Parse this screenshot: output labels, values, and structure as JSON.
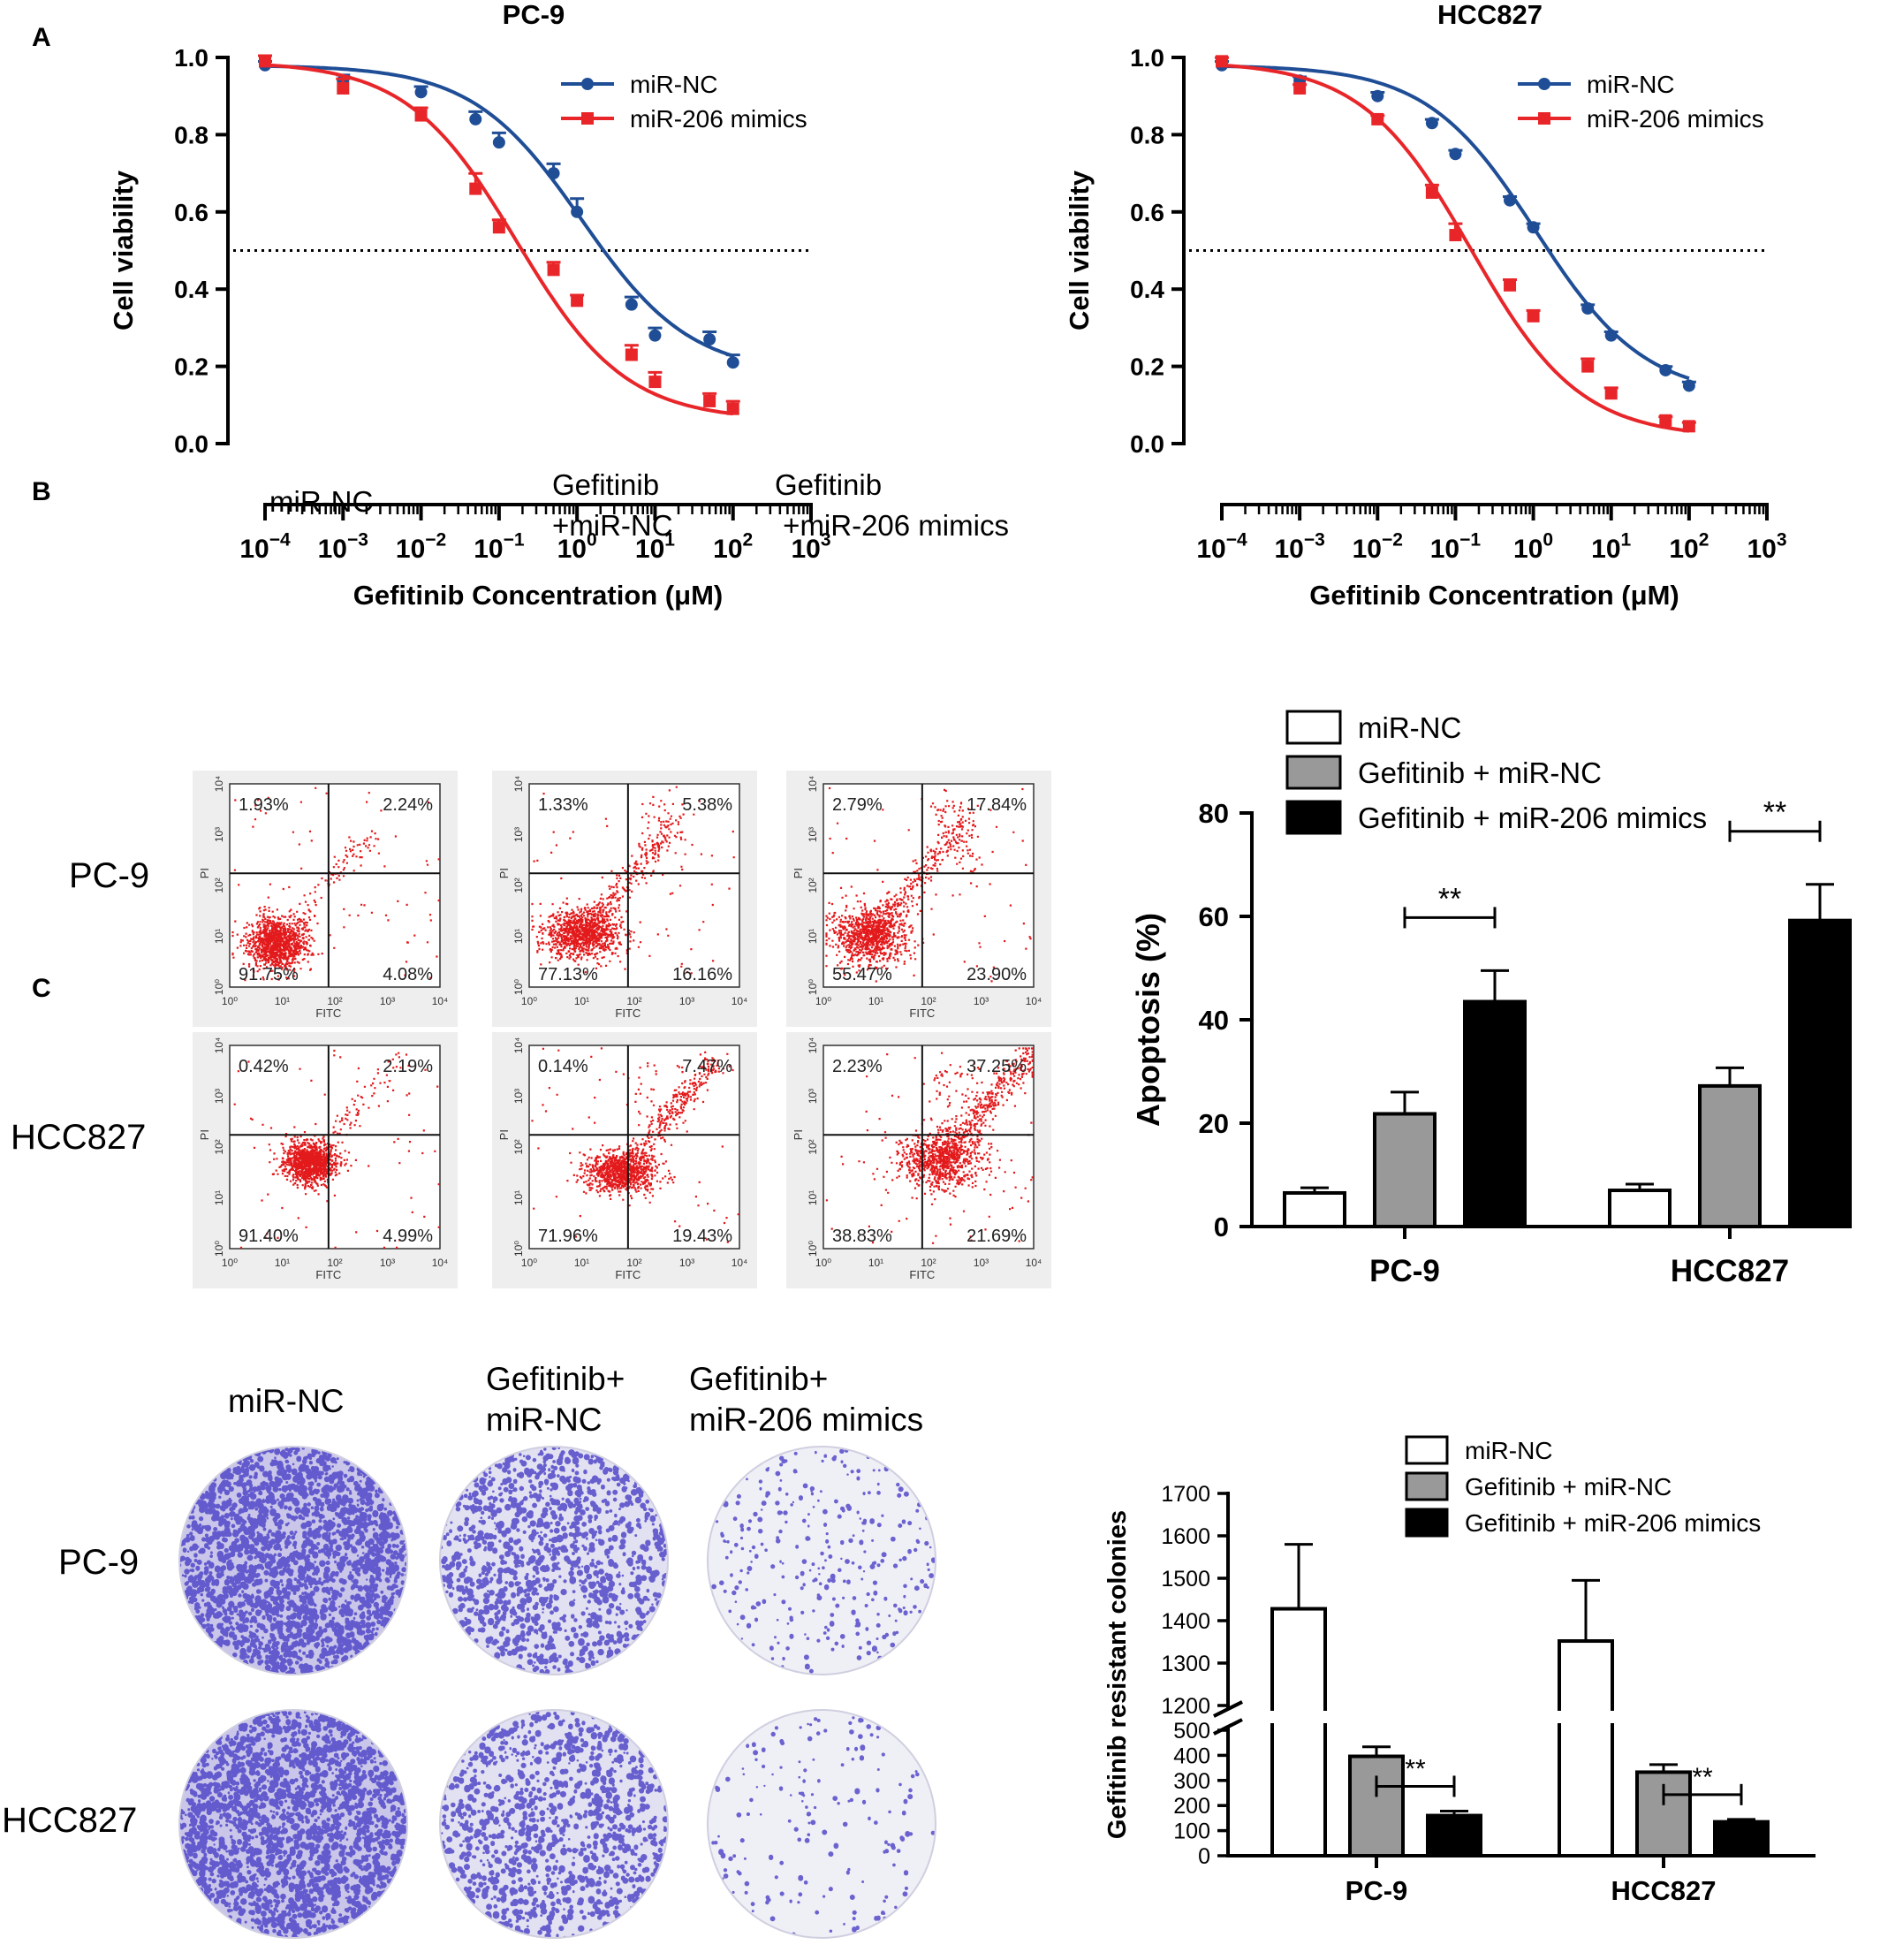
{
  "figure": {
    "panel_letters": [
      "A",
      "B",
      "C"
    ]
  },
  "panel_b": {
    "column_headers": [
      "miR-NC",
      "Gefitinib\n+miR-NC",
      "Gefitinib\n +miR-206 mimics"
    ],
    "row_labels": [
      "PC-9",
      "HCC827"
    ],
    "scatter_axis_labels": {
      "x": "FITC",
      "y": "PI"
    },
    "scatter_tick_labels": [
      "10⁰",
      "10¹",
      "10²",
      "10³",
      "10⁴"
    ],
    "quadrants": [
      [
        {
          "ul": "1.93%",
          "ur": "2.24%",
          "ll": "91.75%",
          "lr": "4.08%"
        },
        {
          "ul": "1.33%",
          "ur": "5.38%",
          "ll": "77.13%",
          "lr": "16.16%"
        },
        {
          "ul": "2.79%",
          "ur": "17.84%",
          "ll": "55.47%",
          "lr": "23.90%"
        }
      ],
      [
        {
          "ul": "0.42%",
          "ur": "2.19%",
          "ll": "91.40%",
          "lr": "4.99%"
        },
        {
          "ul": "0.14%",
          "ur": "7.47%",
          "ll": "71.96%",
          "lr": "19.43%"
        },
        {
          "ul": "2.23%",
          "ur": "37.25%",
          "ll": "38.83%",
          "lr": "21.69%"
        }
      ]
    ]
  },
  "panel_c": {
    "column_headers": [
      "miR-NC",
      "Gefitinib+\nmiR-NC",
      "Gefitinib+\nmiR-206 mimics"
    ],
    "row_labels": [
      "PC-9",
      "HCC827"
    ],
    "colony_density": [
      [
        1.0,
        0.55,
        0.12
      ],
      [
        1.0,
        0.5,
        0.06
      ]
    ]
  },
  "colors": {
    "blue": "#1f4e96",
    "red": "#e8262a",
    "grey_bar": "#999999",
    "black_bar": "#000000",
    "facs_red": "#e31a1c",
    "colony_purple": "#4a3fc7"
  },
  "chart_data": [
    {
      "type": "line",
      "title": "PC-9",
      "xlabel": "Gefitinib Concentration (μM)",
      "ylabel": "Cell  viability",
      "xscale": "log",
      "xlim": [
        0.0001,
        1000
      ],
      "ylim": [
        0,
        1.0
      ],
      "x_tick_labels": [
        "10−4",
        "10−3",
        "10−2",
        "10−1",
        "100",
        "101",
        "102",
        "103"
      ],
      "y_tick_labels": [
        "0.0",
        "0.2",
        "0.4",
        "0.6",
        "0.8",
        "1.0"
      ],
      "reference_line": 0.5,
      "legend": "top-right",
      "series": [
        {
          "name": "miR-NC",
          "color": "#1f4e96",
          "x": [
            0.0001,
            0.001,
            0.01,
            0.05,
            0.1,
            0.5,
            1,
            5,
            10,
            50,
            100
          ],
          "y": [
            0.98,
            0.94,
            0.91,
            0.84,
            0.78,
            0.7,
            0.6,
            0.36,
            0.28,
            0.27,
            0.21
          ],
          "err": [
            0.005,
            0.01,
            0.01,
            0.015,
            0.02,
            0.02,
            0.03,
            0.015,
            0.015,
            0.015,
            0.015
          ]
        },
        {
          "name": "miR-206 mimics",
          "color": "#e8262a",
          "x": [
            0.0001,
            0.001,
            0.01,
            0.05,
            0.1,
            0.5,
            1,
            5,
            10,
            50,
            100
          ],
          "y": [
            0.99,
            0.92,
            0.85,
            0.66,
            0.56,
            0.45,
            0.37,
            0.23,
            0.16,
            0.11,
            0.09
          ],
          "err": [
            0.01,
            0.02,
            0.015,
            0.035,
            0.015,
            0.015,
            0.01,
            0.02,
            0.02,
            0.015,
            0.015
          ]
        }
      ]
    },
    {
      "type": "line",
      "title": "HCC827",
      "xlabel": "Gefitinib Concentration (μM)",
      "ylabel": "Cell  viability",
      "xscale": "log",
      "xlim": [
        0.0001,
        1000
      ],
      "ylim": [
        0,
        1.0
      ],
      "x_tick_labels": [
        "10−4",
        "10−3",
        "10−2",
        "10−1",
        "100",
        "101",
        "102",
        "103"
      ],
      "y_tick_labels": [
        "0.0",
        "0.2",
        "0.4",
        "0.6",
        "0.8",
        "1.0"
      ],
      "reference_line": 0.5,
      "legend": "top-right",
      "series": [
        {
          "name": "miR-NC",
          "color": "#1f4e96",
          "x": [
            0.0001,
            0.001,
            0.01,
            0.05,
            0.1,
            0.5,
            1,
            5,
            10,
            50,
            100
          ],
          "y": [
            0.98,
            0.94,
            0.9,
            0.83,
            0.75,
            0.63,
            0.56,
            0.35,
            0.28,
            0.19,
            0.15
          ],
          "err": [
            0.005,
            0.005,
            0.005,
            0.005,
            0.005,
            0.005,
            0.005,
            0.005,
            0.005,
            0.005,
            0.005
          ]
        },
        {
          "name": "miR-206 mimics",
          "color": "#e8262a",
          "x": [
            0.0001,
            0.001,
            0.01,
            0.05,
            0.1,
            0.5,
            1,
            5,
            10,
            50,
            100
          ],
          "y": [
            0.99,
            0.92,
            0.84,
            0.65,
            0.54,
            0.41,
            0.33,
            0.2,
            0.13,
            0.06,
            0.045
          ],
          "err": [
            0.005,
            0.005,
            0.005,
            0.015,
            0.025,
            0.01,
            0.01,
            0.015,
            0.01,
            0.005,
            0.005
          ]
        }
      ]
    },
    {
      "type": "bar",
      "ylabel": "Apoptosis (%)",
      "ylim": [
        0,
        80
      ],
      "y_tick_labels": [
        "0",
        "20",
        "40",
        "60",
        "80"
      ],
      "categories": [
        "PC-9",
        "HCC827"
      ],
      "legend": "top",
      "series": [
        {
          "name": "miR-NC",
          "fill": "#ffffff",
          "values": [
            6.5,
            7.0
          ],
          "err": [
            1.0,
            1.2
          ]
        },
        {
          "name": "Gefitinib + miR-NC",
          "fill": "#999999",
          "values": [
            21.8,
            27.2
          ],
          "err": [
            4.2,
            3.5
          ]
        },
        {
          "name": "Gefitinib + miR-206 mimics",
          "fill": "#000000",
          "values": [
            43.5,
            59.2
          ],
          "err": [
            6.0,
            7.0
          ]
        }
      ],
      "annotations": [
        "**",
        "**"
      ]
    },
    {
      "type": "bar",
      "ylabel": "Gefitinib resistant colonies",
      "y_axis_break": [
        500,
        1200
      ],
      "y_tick_labels": [
        "0",
        "100",
        "200",
        "300",
        "400",
        "500",
        "1200",
        "1300",
        "1400",
        "1500",
        "1600",
        "1700"
      ],
      "categories": [
        "PC-9",
        "HCC827"
      ],
      "legend": "top",
      "series": [
        {
          "name": "miR-NC",
          "fill": "#ffffff",
          "values": [
            1428,
            1352
          ],
          "err": [
            152,
            143
          ]
        },
        {
          "name": "Gefitinib + miR-NC",
          "fill": "#999999",
          "values": [
            396,
            333
          ],
          "err": [
            38,
            30
          ]
        },
        {
          "name": "Gefitinib + miR-206 mimics",
          "fill": "#000000",
          "values": [
            160,
            135
          ],
          "err": [
            18,
            10
          ]
        }
      ],
      "annotations": [
        "**",
        "**"
      ]
    }
  ]
}
